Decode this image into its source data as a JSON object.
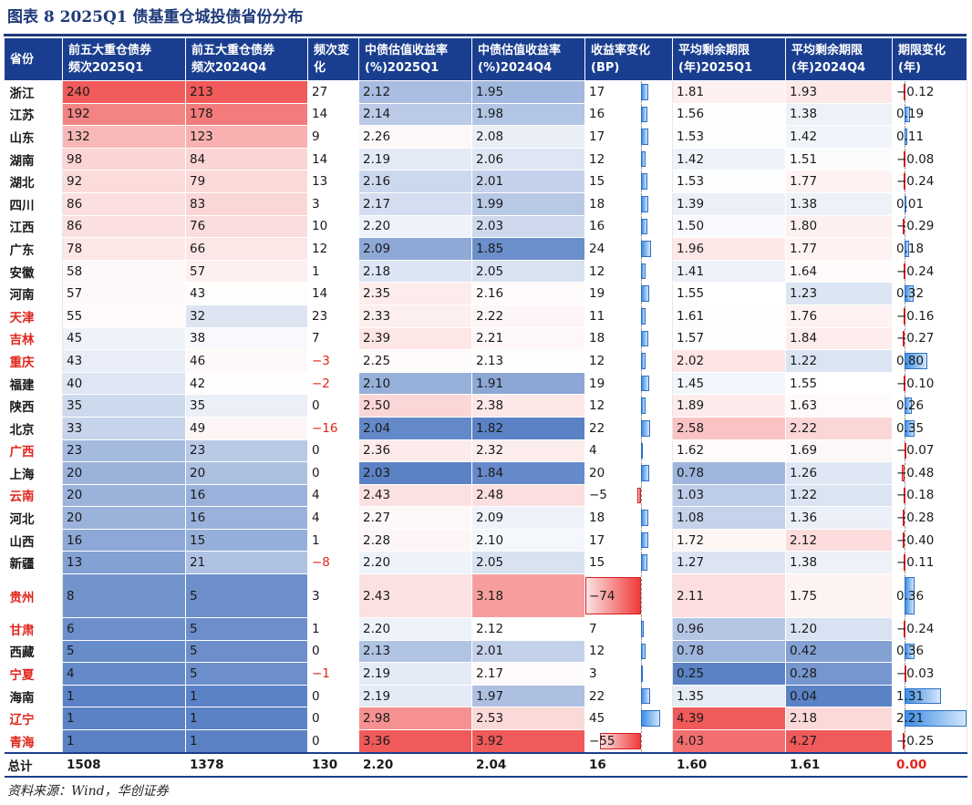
{
  "title": "图表 8   2025Q1 债基重仓城投债省份分布",
  "source": "资料来源：Wind，华创证券",
  "headers": [
    [
      "省份"
    ],
    [
      "前五大重仓债券",
      "频次2025Q1"
    ],
    [
      "前五大重仓债券",
      "频次2024Q4"
    ],
    [
      "频次变",
      "化"
    ],
    [
      "中债估值收益率",
      "(%)2025Q1"
    ],
    [
      "中债估值收益率",
      "(%)2024Q4"
    ],
    [
      "收益率变化",
      "(BP)"
    ],
    [
      "平均剩余期限",
      "(年)2025Q1"
    ],
    [
      "平均剩余期限",
      "(年)2024Q4"
    ],
    [
      "期限变化",
      "(年)"
    ]
  ],
  "rows": [
    {
      "prov": "浙江",
      "red": false,
      "f1": "240",
      "f2": "213",
      "fc": "27",
      "y1": "2.12",
      "y2": "1.95",
      "yc": "17",
      "m1": "1.81",
      "m2": "1.93",
      "mc": "-0.12"
    },
    {
      "prov": "江苏",
      "red": false,
      "f1": "192",
      "f2": "178",
      "fc": "14",
      "y1": "2.14",
      "y2": "1.98",
      "yc": "16",
      "m1": "1.56",
      "m2": "1.38",
      "mc": "0.19"
    },
    {
      "prov": "山东",
      "red": false,
      "f1": "132",
      "f2": "123",
      "fc": "9",
      "y1": "2.26",
      "y2": "2.08",
      "yc": "17",
      "m1": "1.53",
      "m2": "1.42",
      "mc": "0.11"
    },
    {
      "prov": "湖南",
      "red": false,
      "f1": "98",
      "f2": "84",
      "fc": "14",
      "y1": "2.19",
      "y2": "2.06",
      "yc": "12",
      "m1": "1.42",
      "m2": "1.51",
      "mc": "-0.08"
    },
    {
      "prov": "湖北",
      "red": false,
      "f1": "92",
      "f2": "79",
      "fc": "13",
      "y1": "2.16",
      "y2": "2.01",
      "yc": "15",
      "m1": "1.53",
      "m2": "1.77",
      "mc": "-0.24"
    },
    {
      "prov": "四川",
      "red": false,
      "f1": "86",
      "f2": "83",
      "fc": "3",
      "y1": "2.17",
      "y2": "1.99",
      "yc": "18",
      "m1": "1.39",
      "m2": "1.38",
      "mc": "0.01"
    },
    {
      "prov": "江西",
      "red": false,
      "f1": "86",
      "f2": "76",
      "fc": "10",
      "y1": "2.20",
      "y2": "2.03",
      "yc": "16",
      "m1": "1.50",
      "m2": "1.80",
      "mc": "-0.29"
    },
    {
      "prov": "广东",
      "red": false,
      "f1": "78",
      "f2": "66",
      "fc": "12",
      "y1": "2.09",
      "y2": "1.85",
      "yc": "24",
      "m1": "1.96",
      "m2": "1.77",
      "mc": "0.18"
    },
    {
      "prov": "安徽",
      "red": false,
      "f1": "58",
      "f2": "57",
      "fc": "1",
      "y1": "2.18",
      "y2": "2.05",
      "yc": "12",
      "m1": "1.41",
      "m2": "1.64",
      "mc": "-0.24"
    },
    {
      "prov": "河南",
      "red": false,
      "f1": "57",
      "f2": "43",
      "fc": "14",
      "y1": "2.35",
      "y2": "2.16",
      "yc": "19",
      "m1": "1.55",
      "m2": "1.23",
      "mc": "0.32"
    },
    {
      "prov": "天津",
      "red": true,
      "f1": "55",
      "f2": "32",
      "fc": "23",
      "y1": "2.33",
      "y2": "2.22",
      "yc": "11",
      "m1": "1.61",
      "m2": "1.76",
      "mc": "-0.16"
    },
    {
      "prov": "吉林",
      "red": true,
      "f1": "45",
      "f2": "38",
      "fc": "7",
      "y1": "2.39",
      "y2": "2.21",
      "yc": "18",
      "m1": "1.57",
      "m2": "1.84",
      "mc": "-0.27"
    },
    {
      "prov": "重庆",
      "red": true,
      "f1": "43",
      "f2": "46",
      "fc": "-3",
      "y1": "2.25",
      "y2": "2.13",
      "yc": "12",
      "m1": "2.02",
      "m2": "1.22",
      "mc": "0.80"
    },
    {
      "prov": "福建",
      "red": false,
      "f1": "40",
      "f2": "42",
      "fc": "-2",
      "y1": "2.10",
      "y2": "1.91",
      "yc": "19",
      "m1": "1.45",
      "m2": "1.55",
      "mc": "-0.10"
    },
    {
      "prov": "陕西",
      "red": false,
      "f1": "35",
      "f2": "35",
      "fc": "0",
      "y1": "2.50",
      "y2": "2.38",
      "yc": "12",
      "m1": "1.89",
      "m2": "1.63",
      "mc": "0.26"
    },
    {
      "prov": "北京",
      "red": false,
      "f1": "33",
      "f2": "49",
      "fc": "-16",
      "y1": "2.04",
      "y2": "1.82",
      "yc": "22",
      "m1": "2.58",
      "m2": "2.22",
      "mc": "0.35"
    },
    {
      "prov": "广西",
      "red": true,
      "f1": "23",
      "f2": "23",
      "fc": "0",
      "y1": "2.36",
      "y2": "2.32",
      "yc": "4",
      "m1": "1.62",
      "m2": "1.69",
      "mc": "-0.07"
    },
    {
      "prov": "上海",
      "red": false,
      "f1": "20",
      "f2": "20",
      "fc": "0",
      "y1": "2.03",
      "y2": "1.84",
      "yc": "20",
      "m1": "0.78",
      "m2": "1.26",
      "mc": "-0.48"
    },
    {
      "prov": "云南",
      "red": true,
      "f1": "20",
      "f2": "16",
      "fc": "4",
      "y1": "2.43",
      "y2": "2.48",
      "yc": "-5",
      "m1": "1.03",
      "m2": "1.22",
      "mc": "-0.18"
    },
    {
      "prov": "河北",
      "red": false,
      "f1": "20",
      "f2": "16",
      "fc": "4",
      "y1": "2.27",
      "y2": "2.09",
      "yc": "18",
      "m1": "1.08",
      "m2": "1.36",
      "mc": "-0.28"
    },
    {
      "prov": "山西",
      "red": false,
      "f1": "16",
      "f2": "15",
      "fc": "1",
      "y1": "2.28",
      "y2": "2.10",
      "yc": "17",
      "m1": "1.72",
      "m2": "2.12",
      "mc": "-0.40"
    },
    {
      "prov": "新疆",
      "red": false,
      "f1": "13",
      "f2": "21",
      "fc": "-8",
      "y1": "2.20",
      "y2": "2.05",
      "yc": "15",
      "m1": "1.27",
      "m2": "1.38",
      "mc": "-0.11"
    },
    {
      "prov": "贵州",
      "red": true,
      "f1": "8",
      "f2": "5",
      "fc": "3",
      "y1": "2.43",
      "y2": "3.18",
      "yc": "-74",
      "m1": "2.11",
      "m2": "1.75",
      "mc": "0.36",
      "tall": true
    },
    {
      "prov": "甘肃",
      "red": true,
      "f1": "6",
      "f2": "5",
      "fc": "1",
      "y1": "2.20",
      "y2": "2.12",
      "yc": "7",
      "m1": "0.96",
      "m2": "1.20",
      "mc": "-0.24"
    },
    {
      "prov": "西藏",
      "red": false,
      "f1": "5",
      "f2": "5",
      "fc": "0",
      "y1": "2.13",
      "y2": "2.01",
      "yc": "12",
      "m1": "0.78",
      "m2": "0.42",
      "mc": "0.36"
    },
    {
      "prov": "宁夏",
      "red": true,
      "f1": "4",
      "f2": "5",
      "fc": "-1",
      "y1": "2.19",
      "y2": "2.17",
      "yc": "3",
      "m1": "0.25",
      "m2": "0.28",
      "mc": "-0.03"
    },
    {
      "prov": "海南",
      "red": false,
      "f1": "1",
      "f2": "1",
      "fc": "0",
      "y1": "2.19",
      "y2": "1.97",
      "yc": "22",
      "m1": "1.35",
      "m2": "0.04",
      "mc": "1.31"
    },
    {
      "prov": "辽宁",
      "red": true,
      "f1": "1",
      "f2": "1",
      "fc": "0",
      "y1": "2.98",
      "y2": "2.53",
      "yc": "45",
      "m1": "4.39",
      "m2": "2.18",
      "mc": "2.21"
    },
    {
      "prov": "青海",
      "red": true,
      "f1": "1",
      "f2": "1",
      "fc": "0",
      "y1": "3.36",
      "y2": "3.92",
      "yc": "-55",
      "m1": "4.03",
      "m2": "4.27",
      "mc": "-0.25"
    }
  ],
  "total": {
    "prov": "总计",
    "f1": "1508",
    "f2": "1378",
    "fc": "130",
    "y1": "2.20",
    "y2": "2.04",
    "yc": "16",
    "m1": "1.60",
    "m2": "1.61",
    "mc": "0.00"
  },
  "colors": {
    "header": "#1a3e8f",
    "low": "#5b82c5",
    "mid": "#ffffff",
    "high": "#f05a5a",
    "redText": "#e0251b"
  }
}
